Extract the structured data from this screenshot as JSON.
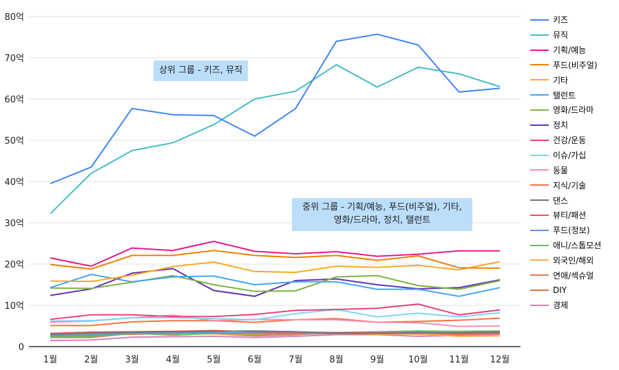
{
  "chart_data": {
    "type": "line",
    "categories": [
      "1월",
      "2월",
      "3월",
      "4월",
      "5월",
      "6월",
      "7월",
      "8월",
      "9월",
      "10월",
      "11월",
      "12월"
    ],
    "ylim": [
      0,
      80
    ],
    "yticks": [
      "0",
      "10억",
      "20억",
      "30억",
      "40억",
      "50억",
      "60억",
      "70억",
      "80억"
    ],
    "grid": true,
    "legend": "right",
    "annotations": [
      "상위 그룹 - 키즈, 뮤직",
      "중위 그룹 - 기획/예능, 푸드(비주얼), 기타,",
      "영화/드라마, 정치, 탤런트"
    ],
    "series": [
      {
        "name": "키즈",
        "color": "#4285f4",
        "values": [
          39.5,
          43.5,
          57.7,
          56.2,
          56,
          51,
          57.7,
          74,
          75.7,
          73.1,
          61.7,
          62.6
        ]
      },
      {
        "name": "뮤직",
        "color": "#46bdc6",
        "values": [
          32.2,
          42,
          47.5,
          49.4,
          53.8,
          60,
          61.9,
          68.3,
          62.9,
          67.7,
          66.1,
          63
        ]
      },
      {
        "name": "기획/예능",
        "color": "#e8178a",
        "values": [
          21.5,
          19.5,
          23.9,
          23.3,
          25.5,
          23.1,
          22.5,
          23,
          21.9,
          22.4,
          23.2,
          23.2
        ]
      },
      {
        "name": "푸드(비주얼)",
        "color": "#f57c00",
        "values": [
          19.9,
          18.8,
          22.1,
          22.1,
          23.3,
          22.1,
          21.6,
          22.1,
          20.9,
          22,
          19.1,
          19
        ]
      },
      {
        "name": "기타",
        "color": "#f9a825",
        "values": [
          15.9,
          15.8,
          17.3,
          19.4,
          20.5,
          18.2,
          18,
          19.5,
          19.2,
          19.7,
          18.6,
          20.6
        ]
      },
      {
        "name": "탤런트",
        "color": "#42a5f5",
        "values": [
          14.3,
          17.5,
          15.7,
          16.9,
          17.1,
          15,
          15.7,
          15.7,
          13.9,
          13.9,
          12.2,
          14.3
        ]
      },
      {
        "name": "영화/드라마",
        "color": "#7cb342",
        "values": [
          14.2,
          14.1,
          15.6,
          17.2,
          15,
          13.4,
          13.5,
          16.9,
          17.2,
          14.8,
          13.9,
          16
        ]
      },
      {
        "name": "정치",
        "color": "#5e35b1",
        "values": [
          12.4,
          14,
          17.8,
          18.9,
          13.6,
          12.2,
          16,
          16.4,
          15,
          14,
          14.3,
          16.2
        ]
      },
      {
        "name": "건강/운동",
        "color": "#ec407a",
        "values": [
          6.6,
          7.7,
          7.7,
          7.3,
          7.3,
          7.8,
          8.8,
          9,
          9.3,
          10.3,
          7.7,
          8.9
        ]
      },
      {
        "name": "이슈/가십",
        "color": "#81d4fa",
        "values": [
          6.2,
          6.3,
          7,
          7,
          6.8,
          6.5,
          8,
          9,
          7.2,
          8.1,
          7.2,
          8.2
        ]
      },
      {
        "name": "동물",
        "color": "#f48fb1",
        "values": [
          5.9,
          6.2,
          7,
          7.6,
          6.3,
          6.6,
          6.5,
          6.5,
          5.9,
          5.8,
          4.9,
          5
        ]
      },
      {
        "name": "지식/기술",
        "color": "#ff7043",
        "values": [
          5.1,
          5.1,
          6,
          6.3,
          6.3,
          5.9,
          6.5,
          6.8,
          5.9,
          6.1,
          6.4,
          6.9
        ]
      },
      {
        "name": "댄스",
        "color": "#757575",
        "values": [
          3,
          3.3,
          3.5,
          3.6,
          3.7,
          3.8,
          3.6,
          3.3,
          3.2,
          3.3,
          3.4,
          3.5
        ]
      },
      {
        "name": "뷰티/패션",
        "color": "#ef5350",
        "values": [
          3.2,
          3.5,
          3.6,
          3.7,
          3.9,
          3.6,
          3.5,
          3.4,
          3.3,
          3.4,
          3.2,
          3.4
        ]
      },
      {
        "name": "푸드(정보)",
        "color": "#5c9bd5",
        "values": [
          2.7,
          2.9,
          3.3,
          3.3,
          3.4,
          3.3,
          3.3,
          3.3,
          3.3,
          3.5,
          3.3,
          3.6
        ]
      },
      {
        "name": "애니/스톱모션",
        "color": "#66bb6a",
        "values": [
          2.5,
          2.5,
          3.2,
          2.8,
          3.2,
          3.1,
          3.2,
          3.4,
          3.6,
          3.8,
          3.7,
          3.8
        ]
      },
      {
        "name": "외국인/해외",
        "color": "#ffa94d",
        "values": [
          2.9,
          3.2,
          3.4,
          3.3,
          3.1,
          3,
          3.2,
          3.4,
          3,
          3.1,
          2.5,
          2.6
        ]
      },
      {
        "name": "연애/섹슈얼",
        "color": "#e07a5f",
        "values": [
          2.2,
          2.2,
          3.2,
          3,
          3.1,
          2.6,
          2.9,
          3.4,
          3.2,
          3,
          2.8,
          3.2
        ]
      },
      {
        "name": "DIY",
        "color": "#d9704f",
        "values": [
          2.6,
          2.8,
          3,
          3.2,
          3.3,
          2.9,
          3,
          3.2,
          3,
          3.1,
          3,
          3.1
        ]
      },
      {
        "name": "경제",
        "color": "#d682b8",
        "values": [
          1.5,
          1.6,
          2.3,
          2.4,
          2.5,
          2.2,
          2.5,
          2.9,
          2.9,
          2.5,
          2.7,
          3
        ]
      }
    ]
  }
}
